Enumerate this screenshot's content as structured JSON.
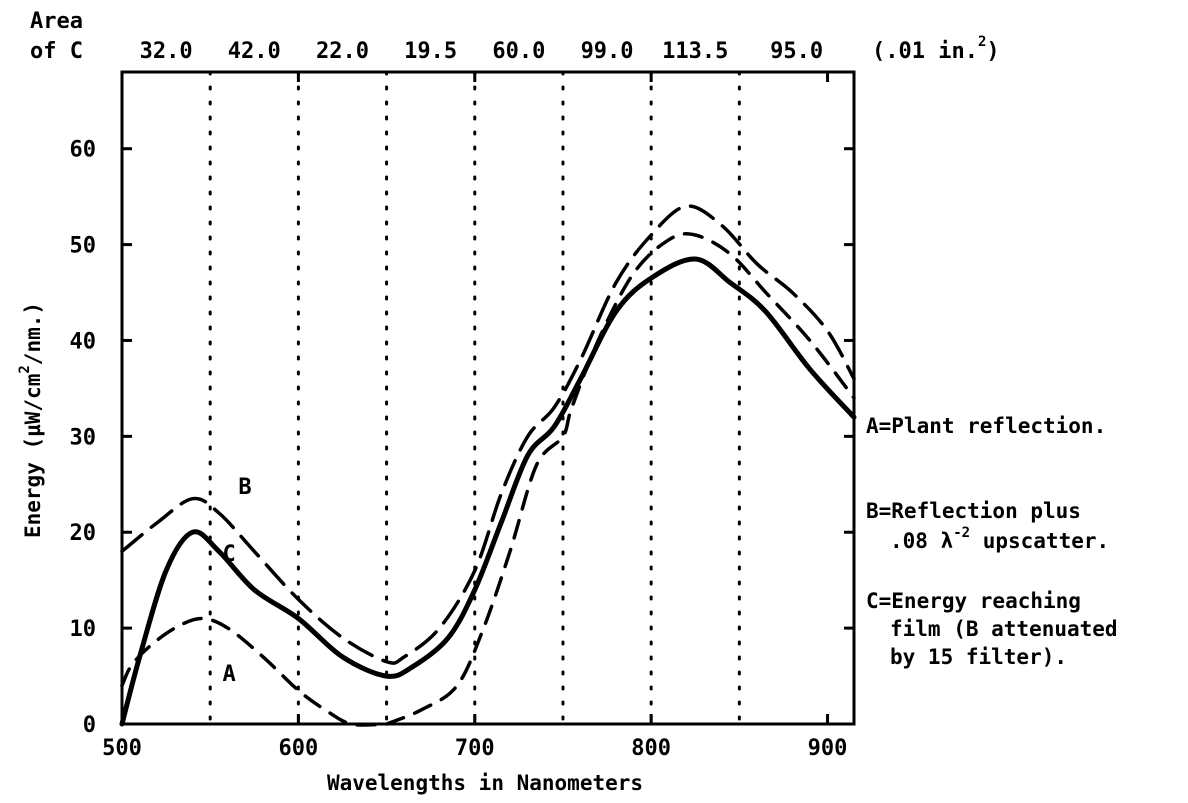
{
  "chart_data": {
    "type": "line",
    "xlabel": "Wavelengths in Nanometers",
    "ylabel_parts": {
      "prefix": "Energy (µW/cm",
      "exp": "2",
      "suffix": "/nm.)"
    },
    "xlim": [
      500,
      915
    ],
    "ylim": [
      0,
      68
    ],
    "x_ticks": [
      500,
      600,
      700,
      800,
      900
    ],
    "y_ticks": [
      0,
      10,
      20,
      30,
      40,
      50,
      60
    ],
    "band_boundaries": [
      550,
      600,
      650,
      700,
      750,
      800,
      850
    ],
    "grid": "dotted vertical lines at band boundaries",
    "area_header": {
      "line1": "Area",
      "line2": "of C",
      "unit_prefix": "(.01 in.",
      "unit_exp": "2",
      "unit_suffix": ")"
    },
    "area_values": [
      "32.0",
      "42.0",
      "22.0",
      "19.5",
      "60.0",
      "99.0",
      "113.5",
      "95.0"
    ],
    "series": [
      {
        "name": "A",
        "style": "dashed",
        "points": [
          [
            500,
            4
          ],
          [
            505,
            6
          ],
          [
            515,
            8
          ],
          [
            530,
            10
          ],
          [
            545,
            11
          ],
          [
            560,
            10
          ],
          [
            580,
            7
          ],
          [
            600,
            3.5
          ],
          [
            615,
            1.5
          ],
          [
            630,
            0
          ],
          [
            650,
            0
          ]
        ]
      },
      {
        "name": "B",
        "style": "long-dashed",
        "points": [
          [
            500,
            18
          ],
          [
            520,
            21
          ],
          [
            540,
            23.5
          ],
          [
            555,
            22
          ],
          [
            575,
            18
          ],
          [
            600,
            13
          ],
          [
            625,
            9
          ],
          [
            650,
            6.5
          ],
          [
            660,
            7
          ],
          [
            680,
            10
          ],
          [
            700,
            16
          ],
          [
            715,
            24
          ],
          [
            730,
            30
          ],
          [
            745,
            33
          ],
          [
            760,
            38
          ],
          [
            780,
            46
          ],
          [
            800,
            51
          ],
          [
            820,
            54
          ],
          [
            840,
            52
          ],
          [
            860,
            48
          ],
          [
            880,
            45
          ],
          [
            900,
            41
          ],
          [
            915,
            36
          ]
        ]
      },
      {
        "name": "C",
        "style": "solid",
        "points": [
          [
            500,
            0
          ],
          [
            510,
            7
          ],
          [
            525,
            16
          ],
          [
            540,
            20
          ],
          [
            555,
            18
          ],
          [
            575,
            14
          ],
          [
            600,
            11
          ],
          [
            625,
            7
          ],
          [
            650,
            5
          ],
          [
            665,
            6
          ],
          [
            685,
            9
          ],
          [
            700,
            14
          ],
          [
            715,
            21
          ],
          [
            730,
            28
          ],
          [
            745,
            31
          ],
          [
            760,
            36
          ],
          [
            780,
            43
          ],
          [
            800,
            46.5
          ],
          [
            825,
            48.5
          ],
          [
            845,
            46
          ],
          [
            865,
            43
          ],
          [
            890,
            37
          ],
          [
            915,
            32
          ]
        ]
      },
      {
        "name": "",
        "style": "dashed",
        "points": [
          [
            650,
            0
          ],
          [
            670,
            1.5
          ],
          [
            690,
            4
          ],
          [
            705,
            10
          ],
          [
            720,
            18
          ],
          [
            735,
            27
          ],
          [
            750,
            30
          ],
          [
            755,
            33
          ],
          [
            770,
            40
          ],
          [
            790,
            47
          ],
          [
            810,
            50.5
          ],
          [
            825,
            51
          ],
          [
            845,
            49
          ],
          [
            865,
            45
          ],
          [
            890,
            40
          ],
          [
            915,
            34
          ]
        ]
      }
    ],
    "curve_labels": [
      {
        "text": "A",
        "x": 557,
        "y": 4.5
      },
      {
        "text": "B",
        "x": 566,
        "y": 24
      },
      {
        "text": "C",
        "x": 557,
        "y": 17
      }
    ],
    "legend": {
      "placement": "right",
      "entries": [
        {
          "lines": [
            "A=Plant reflection."
          ]
        },
        {
          "line1": "B=Reflection plus",
          "line2_prefix": ".08 λ",
          "line2_exp": "-2",
          "line2_suffix": " upscatter."
        },
        {
          "lines": [
            "C=Energy reaching",
            "film (B attenuated",
            "by 15 filter)."
          ]
        }
      ]
    }
  }
}
